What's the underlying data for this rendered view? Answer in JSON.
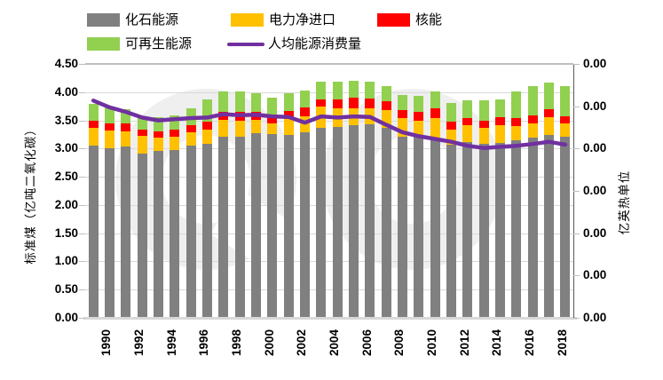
{
  "legend": {
    "items": [
      {
        "label": "化石能源",
        "color": "#808080",
        "type": "box"
      },
      {
        "label": "电力净进口",
        "color": "#FFC000",
        "type": "box"
      },
      {
        "label": "核能",
        "color": "#FF0000",
        "type": "box"
      },
      {
        "label": "可再生能源",
        "color": "#92D050",
        "type": "box"
      },
      {
        "label": "人均能源消费量",
        "color": "#7030A0",
        "type": "line"
      }
    ]
  },
  "axes": {
    "left": {
      "title": "标准煤（亿吨二氧化碳）",
      "ticks": [
        "4.50",
        "4.00",
        "3.50",
        "3.00",
        "2.50",
        "2.00",
        "1.50",
        "1.00",
        "0.50",
        "0.00"
      ]
    },
    "right": {
      "title": "亿英热单位",
      "ticks": [
        "0.00",
        "0.00",
        "0.00",
        "0.00",
        "0.00",
        "0.00",
        "0.00"
      ]
    },
    "x": {
      "labels": [
        "1990",
        "1992",
        "1994",
        "1996",
        "1998",
        "2000",
        "2002",
        "2004",
        "2006",
        "2008",
        "2010",
        "2012",
        "2014",
        "2016",
        "2018"
      ]
    }
  },
  "chart_data": {
    "type": "bar",
    "subtype": "stacked-bar-with-line",
    "title": "",
    "xlabel": "",
    "ylabel_left": "标准煤（亿吨二氧化碳）",
    "ylabel_right": "亿英热单位",
    "ylim": [
      0,
      4.5
    ],
    "ytick_step": 0.5,
    "grid": true,
    "legend_position": "top",
    "categories": [
      1990,
      1991,
      1992,
      1993,
      1994,
      1995,
      1996,
      1997,
      1998,
      1999,
      2000,
      2001,
      2002,
      2003,
      2004,
      2005,
      2006,
      2007,
      2008,
      2009,
      2010,
      2011,
      2012,
      2013,
      2014,
      2015,
      2016,
      2017,
      2018,
      2019
    ],
    "series": [
      {
        "name": "化石能源",
        "color": "#808080",
        "values": [
          3.05,
          3.01,
          3.03,
          2.91,
          2.96,
          2.98,
          3.05,
          3.09,
          3.21,
          3.21,
          3.28,
          3.26,
          3.24,
          3.29,
          3.37,
          3.38,
          3.42,
          3.43,
          3.37,
          3.21,
          3.22,
          3.18,
          3.07,
          3.12,
          3.08,
          3.1,
          3.14,
          3.19,
          3.24,
          3.21
        ]
      },
      {
        "name": "电力净进口",
        "color": "#FFC000",
        "values": [
          0.31,
          0.31,
          0.28,
          0.31,
          0.23,
          0.23,
          0.24,
          0.25,
          0.3,
          0.28,
          0.23,
          0.19,
          0.28,
          0.28,
          0.37,
          0.33,
          0.3,
          0.28,
          0.31,
          0.33,
          0.27,
          0.36,
          0.27,
          0.3,
          0.29,
          0.32,
          0.26,
          0.26,
          0.32,
          0.23
        ]
      },
      {
        "name": "核能",
        "color": "#FF0000",
        "values": [
          0.14,
          0.13,
          0.13,
          0.12,
          0.12,
          0.13,
          0.13,
          0.13,
          0.14,
          0.16,
          0.14,
          0.15,
          0.14,
          0.16,
          0.13,
          0.16,
          0.18,
          0.18,
          0.16,
          0.14,
          0.16,
          0.18,
          0.14,
          0.12,
          0.12,
          0.13,
          0.14,
          0.14,
          0.14,
          0.13
        ]
      },
      {
        "name": "可再生能源",
        "color": "#92D050",
        "values": [
          0.29,
          0.28,
          0.26,
          0.2,
          0.24,
          0.25,
          0.3,
          0.4,
          0.37,
          0.36,
          0.33,
          0.3,
          0.32,
          0.3,
          0.32,
          0.31,
          0.3,
          0.29,
          0.26,
          0.27,
          0.28,
          0.3,
          0.33,
          0.32,
          0.37,
          0.32,
          0.47,
          0.51,
          0.47,
          0.53
        ]
      }
    ],
    "line_series": {
      "name": "人均能源消费量",
      "color": "#7030A0",
      "values": [
        3.85,
        3.73,
        3.65,
        3.55,
        3.5,
        3.52,
        3.54,
        3.55,
        3.61,
        3.59,
        3.6,
        3.57,
        3.56,
        3.46,
        3.57,
        3.55,
        3.57,
        3.56,
        3.42,
        3.29,
        3.22,
        3.17,
        3.12,
        3.05,
        3.01,
        3.03,
        3.05,
        3.08,
        3.12,
        3.07
      ]
    }
  },
  "colors": {
    "gridline": "#D9D9D9",
    "axis_line": "#595959",
    "watermark": "#EFEFEF"
  }
}
